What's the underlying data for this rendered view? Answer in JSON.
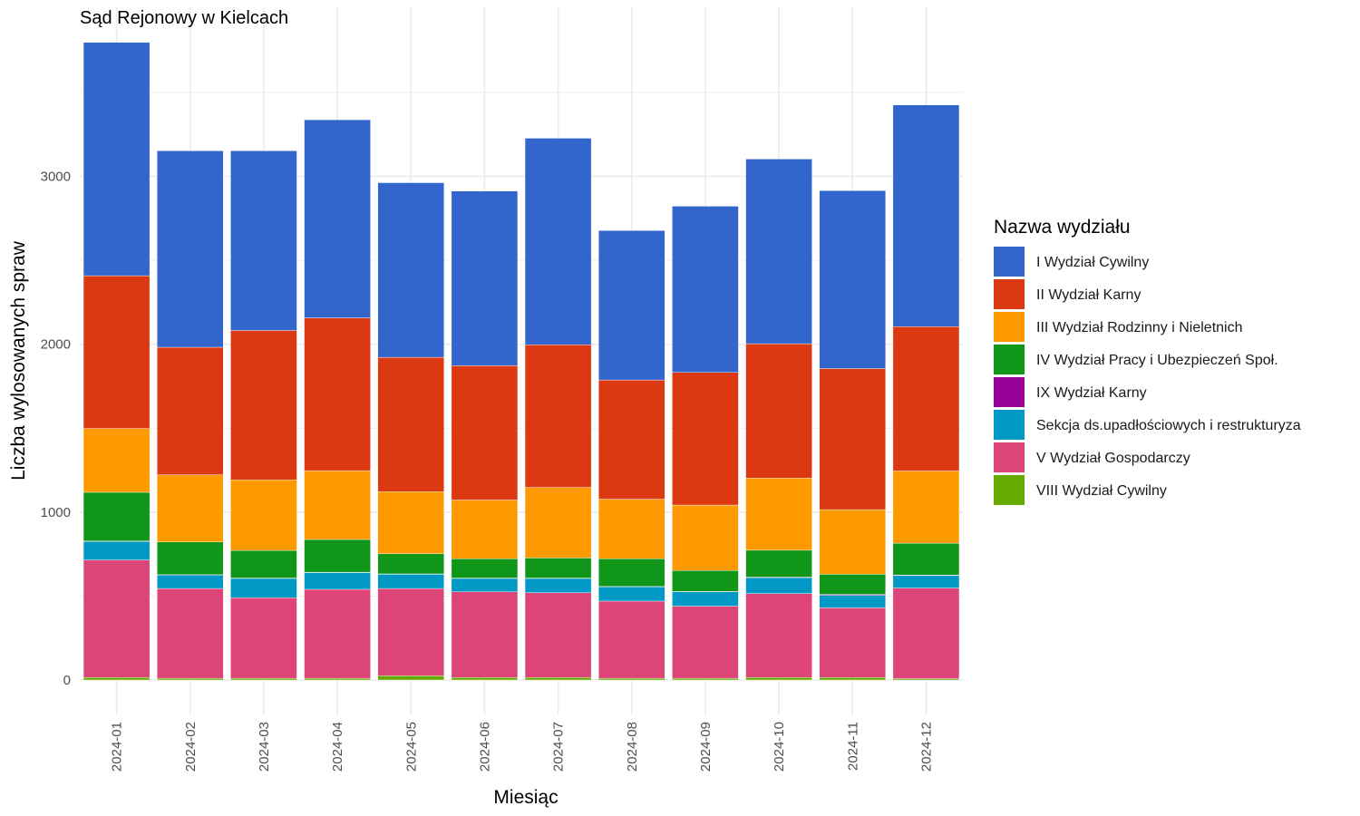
{
  "chart_data": {
    "type": "bar",
    "stacked": true,
    "title": "Sąd Rejonowy w Kielcach",
    "xlabel": "Miesiąc",
    "ylabel": "Liczba wylosowanych spraw",
    "ylim": [
      -100,
      3950
    ],
    "yticks": [
      0,
      1000,
      2000,
      3000
    ],
    "grid": true,
    "legend_position": "right",
    "legend_title": "Nazwa wydziału",
    "categories": [
      "2024-01",
      "2024-02",
      "2024-03",
      "2024-04",
      "2024-05",
      "2024-06",
      "2024-07",
      "2024-08",
      "2024-09",
      "2024-10",
      "2024-11",
      "2024-12"
    ],
    "stack_order": [
      7,
      6,
      5,
      4,
      3,
      2,
      1,
      0
    ],
    "series": [
      {
        "name": "I Wydział Cywilny",
        "color": "#3366CC",
        "values": [
          1390,
          1170,
          1070,
          1180,
          1040,
          1040,
          1230,
          890,
          990,
          1100,
          1060,
          1320
        ]
      },
      {
        "name": "II Wydział Karny",
        "color": "#DC3912",
        "values": [
          910,
          760,
          890,
          910,
          800,
          800,
          850,
          710,
          790,
          800,
          840,
          860
        ]
      },
      {
        "name": "III Wydział Rodzinny i Nieletnich",
        "color": "#FF9900",
        "values": [
          380,
          400,
          420,
          410,
          370,
          350,
          420,
          355,
          390,
          430,
          385,
          430
        ]
      },
      {
        "name": "IV Wydział Pracy i Ubezpieczeń Społ.",
        "color": "#109618",
        "values": [
          290,
          195,
          165,
          195,
          120,
          115,
          120,
          165,
          125,
          160,
          120,
          190
        ]
      },
      {
        "name": "IX Wydział Karny",
        "color": "#990099",
        "values": [
          3,
          2,
          2,
          2,
          2,
          2,
          2,
          2,
          2,
          3,
          5,
          2
        ]
      },
      {
        "name": "Sekcja ds.upadłościowych i restrukturyza",
        "color": "#0099C6",
        "values": [
          110,
          80,
          115,
          100,
          85,
          80,
          85,
          85,
          85,
          95,
          75,
          75
        ]
      },
      {
        "name": "V Wydział Gospodarczy",
        "color": "#DD4477",
        "values": [
          700,
          535,
          480,
          530,
          520,
          510,
          505,
          460,
          430,
          500,
          415,
          540
        ]
      },
      {
        "name": "VIII Wydział Cywilny",
        "color": "#66AA00",
        "values": [
          15,
          10,
          10,
          10,
          25,
          15,
          15,
          10,
          10,
          15,
          15,
          8
        ]
      }
    ]
  }
}
